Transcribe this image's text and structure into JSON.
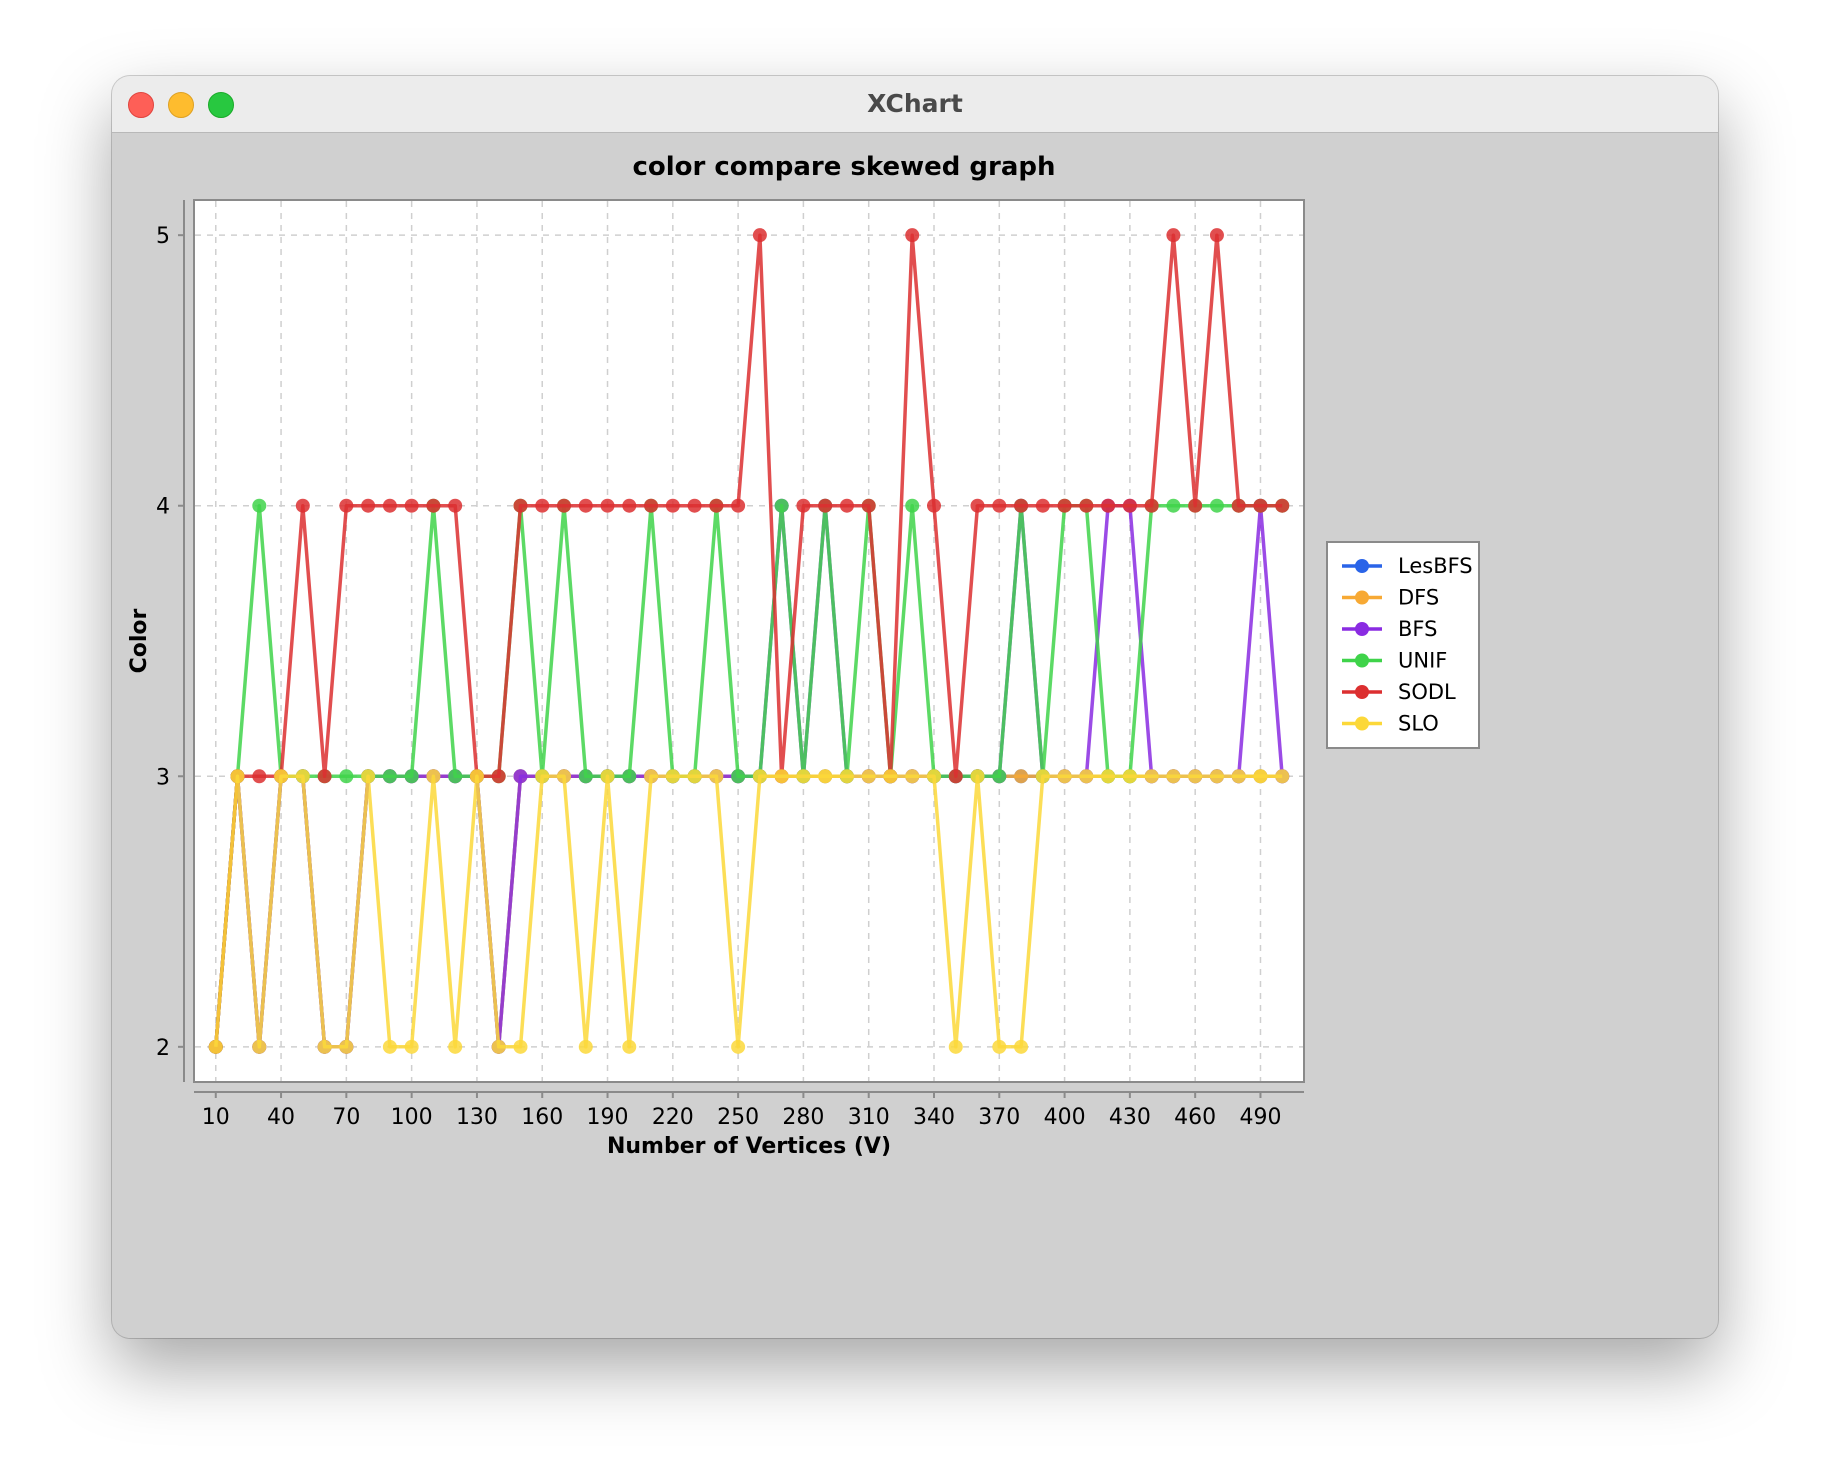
{
  "window": {
    "title": "XChart"
  },
  "chart_data": {
    "type": "line",
    "title": "color compare skewed graph",
    "xlabel": "Number of Vertices (V)",
    "ylabel": "Color",
    "xlim": [
      0,
      510
    ],
    "ylim": [
      1.87,
      5.13
    ],
    "x_ticks": [
      10,
      40,
      70,
      100,
      130,
      160,
      190,
      220,
      250,
      280,
      310,
      340,
      370,
      400,
      430,
      460,
      490
    ],
    "y_ticks": [
      2,
      3,
      4,
      5
    ],
    "grid": true,
    "legend_position": "outside-right",
    "x": [
      10,
      20,
      30,
      40,
      50,
      60,
      70,
      80,
      90,
      100,
      110,
      120,
      130,
      140,
      150,
      160,
      170,
      180,
      190,
      200,
      210,
      220,
      230,
      240,
      250,
      260,
      270,
      280,
      290,
      300,
      310,
      320,
      330,
      340,
      350,
      360,
      370,
      380,
      390,
      400,
      410,
      420,
      430,
      440,
      450,
      460,
      470,
      480,
      490,
      500
    ],
    "series": [
      {
        "name": "LesBFS",
        "color": "#2a64e8",
        "values": [
          2,
          3,
          2,
          3,
          3,
          2,
          2,
          3,
          3,
          3,
          3,
          3,
          3,
          2,
          3,
          3,
          3,
          3,
          3,
          3,
          3,
          3,
          3,
          3,
          3,
          3,
          3,
          3,
          3,
          3,
          3,
          3,
          3,
          3,
          3,
          3,
          3,
          3,
          3,
          3,
          3,
          3,
          3,
          3,
          3,
          3,
          3,
          3,
          3,
          3
        ]
      },
      {
        "name": "DFS",
        "color": "#f7a934",
        "values": [
          2,
          3,
          2,
          3,
          3,
          2,
          2,
          3,
          3,
          3,
          3,
          3,
          3,
          2,
          3,
          3,
          3,
          3,
          3,
          3,
          3,
          3,
          3,
          3,
          3,
          3,
          3,
          3,
          3,
          3,
          3,
          3,
          3,
          3,
          3,
          3,
          3,
          3,
          3,
          3,
          3,
          3,
          3,
          3,
          3,
          3,
          3,
          3,
          3,
          3
        ]
      },
      {
        "name": "BFS",
        "color": "#8a2be2",
        "values": [
          2,
          3,
          2,
          3,
          3,
          2,
          2,
          3,
          3,
          3,
          3,
          3,
          3,
          2,
          3,
          3,
          3,
          3,
          3,
          3,
          3,
          3,
          3,
          3,
          3,
          3,
          4,
          3,
          4,
          3,
          3,
          3,
          3,
          3,
          3,
          3,
          3,
          4,
          3,
          3,
          3,
          4,
          4,
          3,
          3,
          3,
          3,
          3,
          4,
          3
        ]
      },
      {
        "name": "UNIF",
        "color": "#3fd34a",
        "values": [
          2,
          3,
          4,
          3,
          3,
          3,
          3,
          3,
          3,
          3,
          4,
          3,
          3,
          3,
          4,
          3,
          4,
          3,
          3,
          3,
          4,
          3,
          3,
          4,
          3,
          3,
          4,
          3,
          4,
          3,
          4,
          3,
          4,
          3,
          3,
          3,
          3,
          4,
          3,
          4,
          4,
          3,
          3,
          4,
          4,
          4,
          4,
          4,
          4,
          4
        ]
      },
      {
        "name": "SODL",
        "color": "#dc2f30",
        "values": [
          2,
          3,
          3,
          3,
          4,
          3,
          4,
          4,
          4,
          4,
          4,
          4,
          3,
          3,
          4,
          4,
          4,
          4,
          4,
          4,
          4,
          4,
          4,
          4,
          4,
          5,
          3,
          4,
          4,
          4,
          4,
          3,
          5,
          4,
          3,
          4,
          4,
          4,
          4,
          4,
          4,
          4,
          4,
          4,
          5,
          4,
          5,
          4,
          4,
          4
        ]
      },
      {
        "name": "SLO",
        "color": "#fcd839",
        "values": [
          2,
          3,
          2,
          3,
          3,
          2,
          2,
          3,
          2,
          2,
          3,
          2,
          3,
          2,
          2,
          3,
          3,
          2,
          3,
          2,
          3,
          3,
          3,
          3,
          2,
          3,
          3,
          3,
          3,
          3,
          3,
          3,
          3,
          3,
          2,
          3,
          2,
          2,
          3,
          3,
          3,
          3,
          3,
          3,
          3,
          3,
          3,
          3,
          3,
          3
        ]
      }
    ]
  }
}
